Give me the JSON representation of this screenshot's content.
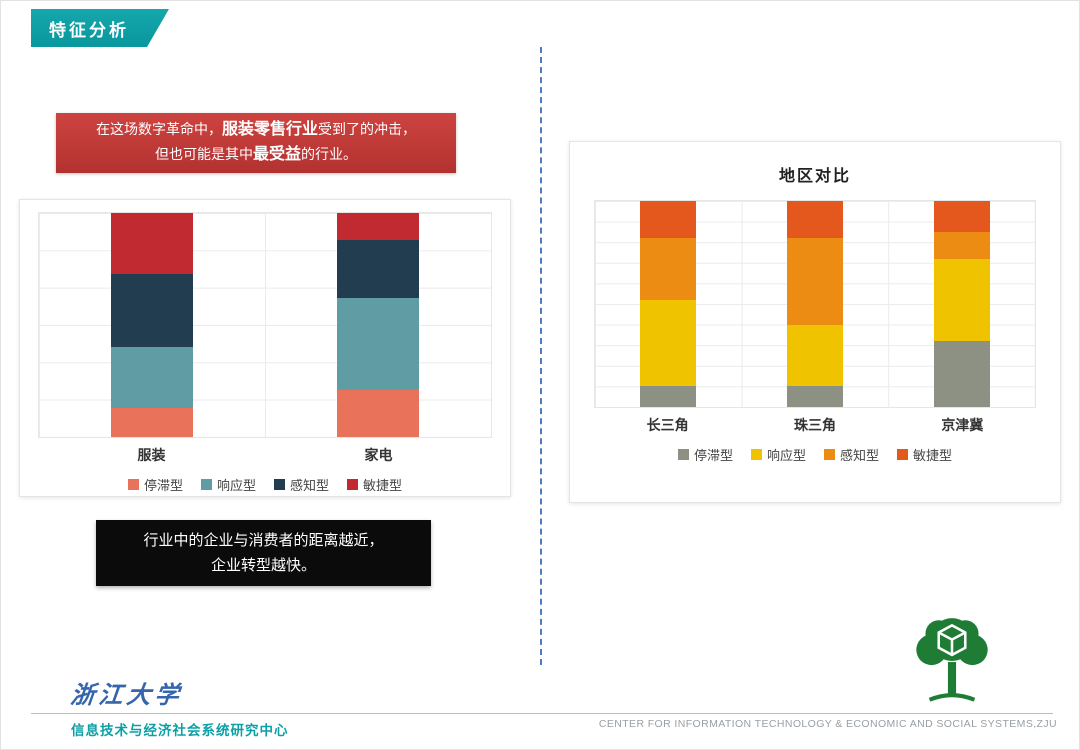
{
  "banner": {
    "title": "特征分析"
  },
  "red_box": {
    "l1a": "在这场数字革命中，",
    "l1b": "服装零售行业",
    "l1c": "受到了的冲击，",
    "l2a": "但也可能是其中",
    "l2b": "最受益",
    "l2c": "的行业。"
  },
  "black_box": {
    "line1": "行业中的企业与消费者的距离越近，",
    "line2": "企业转型越快。"
  },
  "footer": {
    "university_logo": "浙江大学",
    "center_name_cn": "信息技术与经济社会系统研究中心",
    "center_name_en": "CENTER FOR INFORMATION TECHNOLOGY & ECONOMIC AND SOCIAL SYSTEMS,ZJU"
  },
  "chart_data": [
    {
      "type": "bar",
      "stacked": true,
      "title": "",
      "categories": [
        "服装",
        "家电"
      ],
      "series": [
        {
          "name": "停滞型",
          "color": "#e8735a",
          "values": [
            13,
            21
          ]
        },
        {
          "name": "响应型",
          "color": "#5f9ca3",
          "values": [
            27,
            41
          ]
        },
        {
          "name": "感知型",
          "color": "#233d50",
          "values": [
            33,
            26
          ]
        },
        {
          "name": "敏捷型",
          "color": "#c02a30",
          "values": [
            27,
            12
          ]
        }
      ],
      "ylim": [
        0,
        100
      ],
      "grid": true,
      "legend_position": "bottom"
    },
    {
      "type": "bar",
      "stacked": true,
      "title": "地区对比",
      "categories": [
        "长三角",
        "珠三角",
        "京津冀"
      ],
      "series": [
        {
          "name": "停滞型",
          "color": "#8c9184",
          "values": [
            10,
            10,
            32
          ]
        },
        {
          "name": "响应型",
          "color": "#f0c300",
          "values": [
            42,
            30,
            40
          ]
        },
        {
          "name": "感知型",
          "color": "#ec8c12",
          "values": [
            30,
            42,
            13
          ]
        },
        {
          "name": "敏捷型",
          "color": "#e4581d",
          "values": [
            18,
            18,
            15
          ]
        }
      ],
      "ylim": [
        0,
        100
      ],
      "grid": true,
      "legend_position": "bottom"
    }
  ]
}
